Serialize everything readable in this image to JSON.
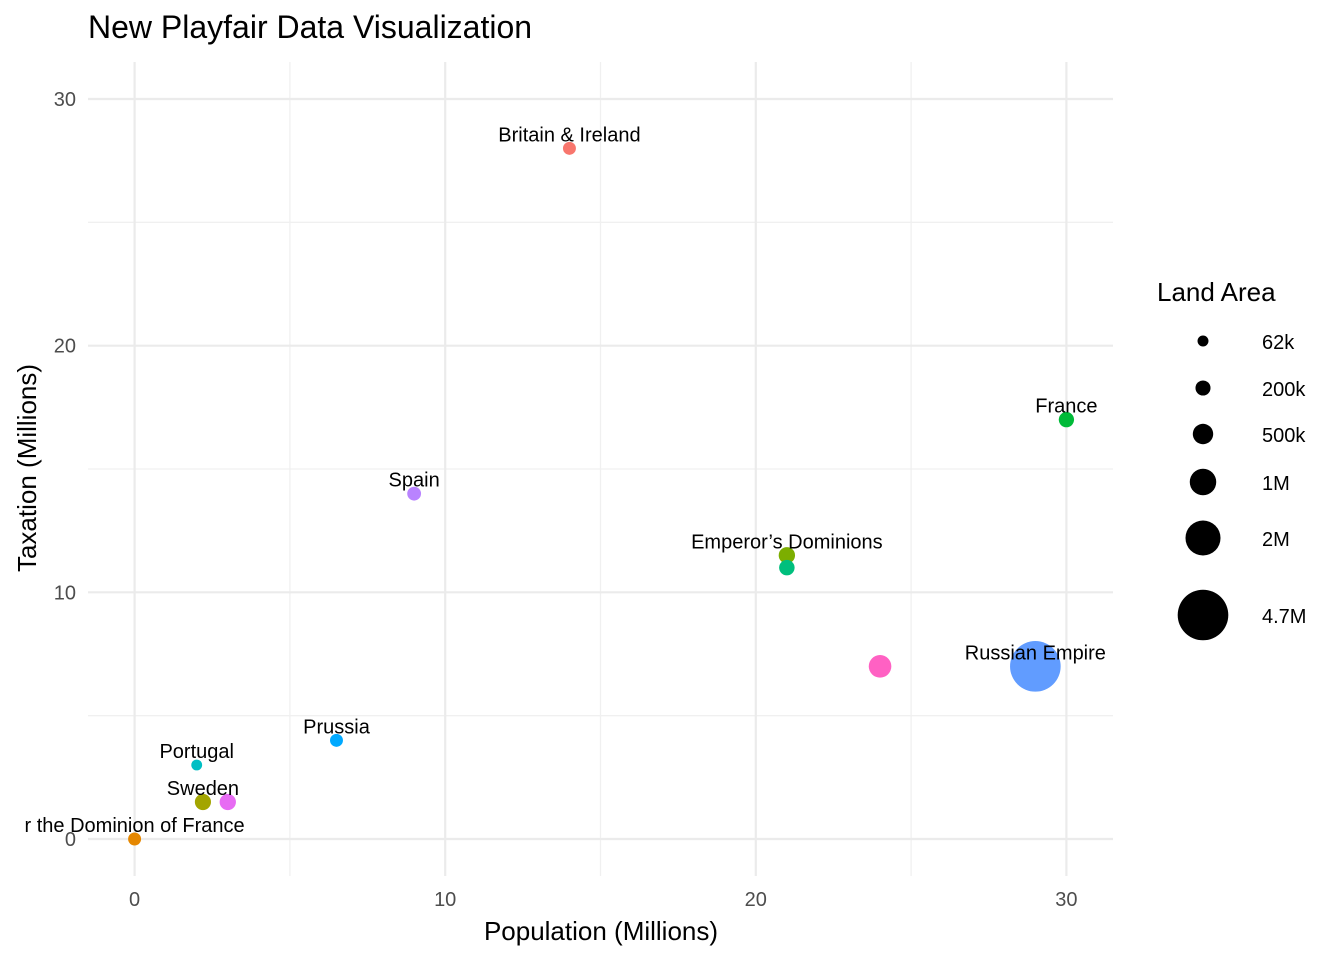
{
  "chart_data": {
    "type": "scatter",
    "title": "New Playfair Data Visualization",
    "xlabel": "Population (Millions)",
    "ylabel": "Taxation (Millions)",
    "xlim": [
      -1.5,
      31.5
    ],
    "ylim": [
      -1.5,
      31.5
    ],
    "x_ticks": [
      0,
      10,
      20,
      30
    ],
    "y_ticks": [
      0,
      10,
      20,
      30
    ],
    "grid": true,
    "legend": {
      "title": "Land Area",
      "position": "right",
      "entries": [
        {
          "label": "62k",
          "area": 62000
        },
        {
          "label": "200k",
          "area": 200000
        },
        {
          "label": "500k",
          "area": 500000
        },
        {
          "label": "1M",
          "area": 1000000
        },
        {
          "label": "2M",
          "area": 2000000
        },
        {
          "label": "4.7M",
          "area": 4700000
        }
      ]
    },
    "points": [
      {
        "label": "Britain & Ireland",
        "x": 14,
        "y": 28,
        "area": 120000,
        "color": "#F8766D"
      },
      {
        "label": "France",
        "x": 30,
        "y": 17,
        "area": 210000,
        "color": "#00BA38"
      },
      {
        "label": "Spain",
        "x": 9,
        "y": 14,
        "area": 150000,
        "color": "#B983FF"
      },
      {
        "label": "Emperor’s Dominions",
        "x": 21,
        "y": 11.5,
        "area": 260000,
        "color": "#7CAE00"
      },
      {
        "label": "",
        "x": 21,
        "y": 11,
        "area": 220000,
        "color": "#00BF7D"
      },
      {
        "label": "",
        "x": 24,
        "y": 7,
        "area": 660000,
        "color": "#FF61C3"
      },
      {
        "label": "Russian Empire",
        "x": 29,
        "y": 7,
        "area": 4700000,
        "color": "#619CFF"
      },
      {
        "label": "Prussia",
        "x": 6.5,
        "y": 4,
        "area": 120000,
        "color": "#00A9FF"
      },
      {
        "label": "Portugal",
        "x": 2,
        "y": 3,
        "area": 60000,
        "color": "#00BFC4"
      },
      {
        "label": "Sweden",
        "x": 2.2,
        "y": 1.5,
        "area": 250000,
        "color": "#A3A500"
      },
      {
        "label": "",
        "x": 3,
        "y": 1.5,
        "area": 260000,
        "color": "#E76BF3"
      },
      {
        "label": "r the Dominion of France",
        "x": 0,
        "y": 0,
        "area": 120000,
        "color": "#E58700"
      }
    ]
  }
}
